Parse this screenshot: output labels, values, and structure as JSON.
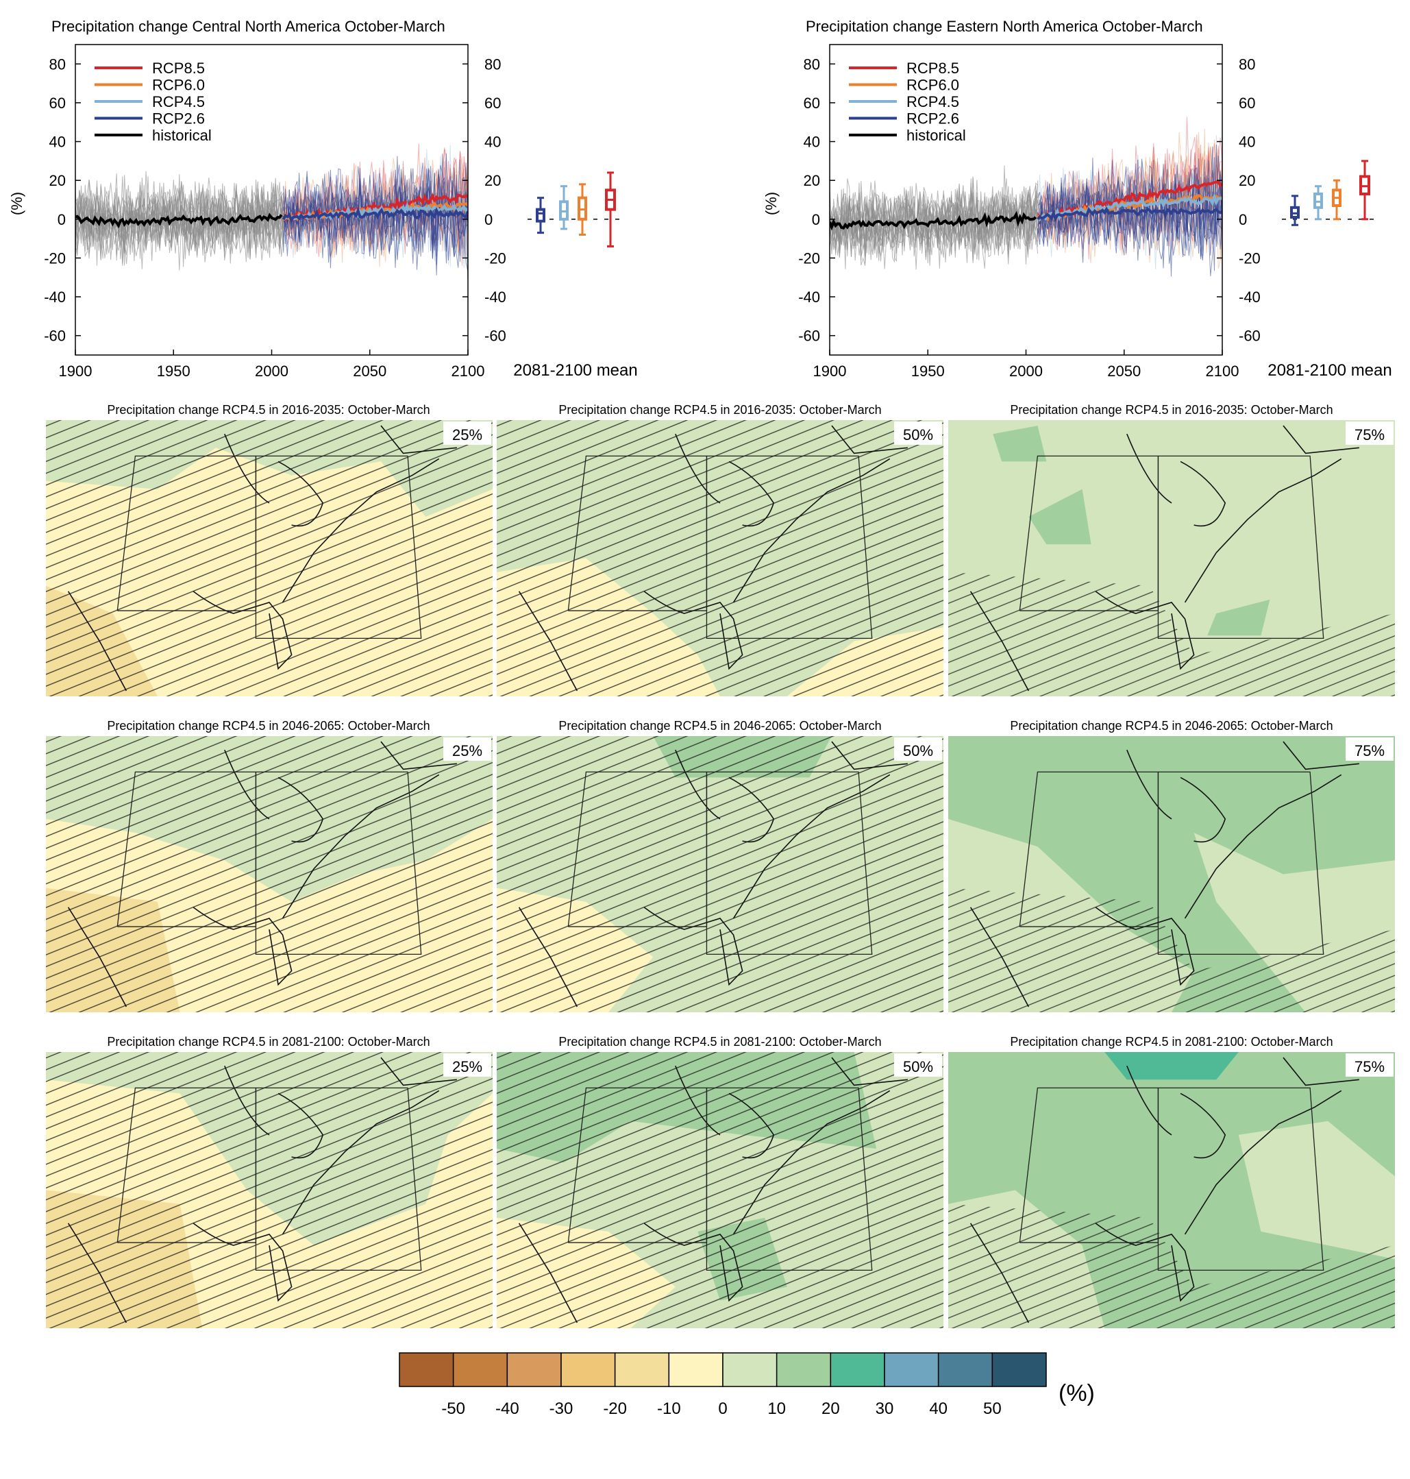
{
  "colors": {
    "rcp85": "#d7262b",
    "rcp60": "#ee7f2d",
    "rcp45": "#80b1d6",
    "rcp26": "#2e3f8f",
    "historical": "#000000",
    "hist_spread": "#8a8a8a"
  },
  "timeseries": [
    {
      "title": "Precipitation change Central North America October-March",
      "ylabel": "(%)",
      "mean_label": "2081-2100 mean"
    },
    {
      "title": "Precipitation change Eastern North America October-March",
      "ylabel": "(%)",
      "mean_label": "2081-2100 mean"
    }
  ],
  "legend": [
    "RCP8.5",
    "RCP6.0",
    "RCP4.5",
    "RCP2.6",
    "historical"
  ],
  "map_rows": [
    {
      "title": "Precipitation change RCP4.5 in 2016-2035: October-March"
    },
    {
      "title": "Precipitation change RCP4.5 in 2046-2065: October-March"
    },
    {
      "title": "Precipitation change RCP4.5 in 2081-2100: October-March"
    }
  ],
  "percentiles": [
    "25%",
    "50%",
    "75%"
  ],
  "colorbar": {
    "unit": "(%)",
    "ticks": [
      "-50",
      "-40",
      "-30",
      "-20",
      "-10",
      "0",
      "10",
      "20",
      "30",
      "40",
      "50"
    ],
    "colors": [
      "#a9622d",
      "#c47e3e",
      "#d89a5d",
      "#efc577",
      "#f4de9b",
      "#fdf4bf",
      "#d3e5bd",
      "#a1cf9e",
      "#4fba95",
      "#6fa5bf",
      "#4a7f97",
      "#2a5670"
    ]
  },
  "chart_data": [
    {
      "type": "line",
      "title": "Precipitation change Central North America October-March",
      "ylabel": "(%)",
      "xlim": [
        1900,
        2100
      ],
      "ylim": [
        -70,
        90
      ],
      "xticks": [
        1900,
        1950,
        2000,
        2050,
        2100
      ],
      "yticks": [
        -60,
        -40,
        -20,
        0,
        20,
        40,
        60,
        80
      ],
      "legend": "top-left",
      "series": [
        {
          "name": "historical",
          "x": [
            1900,
            1925,
            1950,
            1975,
            2005
          ],
          "values": [
            0,
            -2,
            0,
            -1,
            1
          ]
        },
        {
          "name": "RCP2.6",
          "x": [
            2006,
            2025,
            2050,
            2075,
            2100
          ],
          "values": [
            1,
            2,
            3,
            3,
            3
          ]
        },
        {
          "name": "RCP4.5",
          "x": [
            2006,
            2025,
            2050,
            2075,
            2100
          ],
          "values": [
            1,
            2,
            4,
            5,
            6
          ]
        },
        {
          "name": "RCP6.0",
          "x": [
            2006,
            2025,
            2050,
            2075,
            2100
          ],
          "values": [
            1,
            2,
            4,
            6,
            7
          ]
        },
        {
          "name": "RCP8.5",
          "x": [
            2006,
            2025,
            2050,
            2075,
            2100
          ],
          "values": [
            1,
            3,
            6,
            9,
            12
          ]
        }
      ],
      "boxplots_2081_2100": [
        {
          "name": "RCP2.6",
          "whisker_low": -7,
          "q1": -1,
          "median": 3,
          "q3": 5,
          "whisker_high": 11
        },
        {
          "name": "RCP4.5",
          "whisker_low": -5,
          "q1": 0,
          "median": 4,
          "q3": 9,
          "whisker_high": 17
        },
        {
          "name": "RCP6.0",
          "whisker_low": -8,
          "q1": 0,
          "median": 5,
          "q3": 11,
          "whisker_high": 18
        },
        {
          "name": "RCP8.5",
          "whisker_low": -14,
          "q1": 5,
          "median": 10,
          "q3": 15,
          "whisker_high": 24
        }
      ]
    },
    {
      "type": "line",
      "title": "Precipitation change Eastern North America October-March",
      "ylabel": "(%)",
      "xlim": [
        1900,
        2100
      ],
      "ylim": [
        -70,
        90
      ],
      "xticks": [
        1900,
        1950,
        2000,
        2050,
        2100
      ],
      "yticks": [
        -60,
        -40,
        -20,
        0,
        20,
        40,
        60,
        80
      ],
      "legend": "top-left",
      "series": [
        {
          "name": "historical",
          "x": [
            1900,
            1925,
            1950,
            1975,
            2005
          ],
          "values": [
            -3,
            -2,
            -2,
            -1,
            1
          ]
        },
        {
          "name": "RCP2.6",
          "x": [
            2006,
            2025,
            2050,
            2075,
            2100
          ],
          "values": [
            1,
            3,
            4,
            4,
            4
          ]
        },
        {
          "name": "RCP4.5",
          "x": [
            2006,
            2025,
            2050,
            2075,
            2100
          ],
          "values": [
            1,
            4,
            7,
            9,
            10
          ]
        },
        {
          "name": "RCP6.0",
          "x": [
            2006,
            2025,
            2050,
            2075,
            2100
          ],
          "values": [
            1,
            4,
            7,
            10,
            12
          ]
        },
        {
          "name": "RCP8.5",
          "x": [
            2006,
            2025,
            2050,
            2075,
            2100
          ],
          "values": [
            1,
            5,
            10,
            15,
            19
          ]
        }
      ],
      "boxplots_2081_2100": [
        {
          "name": "RCP2.6",
          "whisker_low": -3,
          "q1": 1,
          "median": 3,
          "q3": 6,
          "whisker_high": 12
        },
        {
          "name": "RCP4.5",
          "whisker_low": 0,
          "q1": 6,
          "median": 9,
          "q3": 13,
          "whisker_high": 17
        },
        {
          "name": "RCP6.0",
          "whisker_low": 0,
          "q1": 7,
          "median": 11,
          "q3": 15,
          "whisker_high": 20
        },
        {
          "name": "RCP8.5",
          "whisker_low": 0,
          "q1": 13,
          "median": 17,
          "q3": 22,
          "whisker_high": 30
        }
      ]
    },
    {
      "type": "heatmap",
      "description_value_scale": "(%)",
      "scale_ticks": [
        -50,
        -40,
        -30,
        -20,
        -10,
        0,
        10,
        20,
        30,
        40,
        50
      ],
      "panels": [
        {
          "period": "2016-2035",
          "percentile": "25%",
          "dominant_class": "0 to 10"
        },
        {
          "period": "2016-2035",
          "percentile": "50%",
          "dominant_class": "0 to 10"
        },
        {
          "period": "2016-2035",
          "percentile": "75%",
          "dominant_class": "0 to 10"
        },
        {
          "period": "2046-2065",
          "percentile": "25%",
          "dominant_class": "0 to 10"
        },
        {
          "period": "2046-2065",
          "percentile": "50%",
          "dominant_class": "0 to 10"
        },
        {
          "period": "2046-2065",
          "percentile": "75%",
          "dominant_class": "10 to 20"
        },
        {
          "period": "2081-2100",
          "percentile": "25%",
          "dominant_class": "0 to 10"
        },
        {
          "period": "2081-2100",
          "percentile": "50%",
          "dominant_class": "0 to 10"
        },
        {
          "period": "2081-2100",
          "percentile": "75%",
          "dominant_class": "10 to 20"
        }
      ]
    }
  ]
}
